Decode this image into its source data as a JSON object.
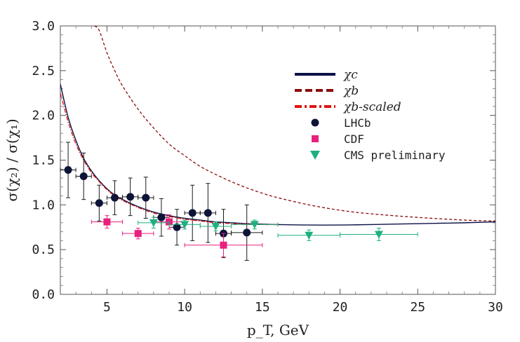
{
  "chart_data": {
    "type": "line",
    "title": "",
    "xlabel": "p_T, GeV",
    "ylabel": "σ(χ₂) / σ(χ₁)",
    "xlim": [
      2,
      30
    ],
    "ylim": [
      0.0,
      3.0
    ],
    "xticks": [
      5,
      10,
      15,
      20,
      25,
      30
    ],
    "xtick_labels": [
      "5",
      "10",
      "15",
      "20",
      "25",
      "30"
    ],
    "yticks": [
      0.0,
      0.5,
      1.0,
      1.5,
      2.0,
      2.5,
      3.0
    ],
    "ytick_labels": [
      "0.0",
      "0.5",
      "1.0",
      "1.5",
      "2.0",
      "2.5",
      "3.0"
    ],
    "legend_position": "top-right",
    "series": [
      {
        "name": "χc",
        "kind": "line",
        "style": "solid",
        "color": "#0d1147",
        "x": [
          2.0,
          2.5,
          3.0,
          3.5,
          4.0,
          4.5,
          5.0,
          5.5,
          6.0,
          7.0,
          8.0,
          9.0,
          10.0,
          11.0,
          12.0,
          13.0,
          14.0,
          15.0,
          16.0,
          18.0,
          20.0,
          22.0,
          25.0,
          28.0,
          30.0
        ],
        "y": [
          2.35,
          1.98,
          1.72,
          1.52,
          1.38,
          1.27,
          1.18,
          1.11,
          1.06,
          0.98,
          0.92,
          0.88,
          0.85,
          0.83,
          0.81,
          0.8,
          0.79,
          0.785,
          0.78,
          0.775,
          0.775,
          0.78,
          0.79,
          0.8,
          0.81
        ]
      },
      {
        "name": "χb",
        "kind": "line",
        "style": "dashed",
        "color": "#8b0a0a",
        "x": [
          4.2,
          4.5,
          5.0,
          5.5,
          6.0,
          7.0,
          8.0,
          9.0,
          10.0,
          11.0,
          12.0,
          13.0,
          14.0,
          15.0,
          16.0,
          18.0,
          20.0,
          22.0,
          25.0,
          28.0,
          30.0
        ],
        "y": [
          3.0,
          2.95,
          2.7,
          2.5,
          2.33,
          2.07,
          1.86,
          1.68,
          1.55,
          1.43,
          1.34,
          1.26,
          1.19,
          1.13,
          1.08,
          1.0,
          0.94,
          0.9,
          0.86,
          0.83,
          0.82
        ]
      },
      {
        "name": "χb-scaled",
        "kind": "line",
        "style": "dash-dot",
        "color": "#e0140f",
        "x": [
          2.0,
          2.5,
          3.0,
          3.5,
          4.0,
          4.5,
          5.0,
          5.5,
          6.0,
          7.0,
          8.0,
          9.0,
          10.0,
          11.0,
          12.0,
          13.0,
          14.0,
          15.0,
          16.0
        ],
        "y": [
          2.25,
          1.93,
          1.68,
          1.5,
          1.36,
          1.26,
          1.17,
          1.1,
          1.05,
          0.97,
          0.91,
          0.87,
          0.84,
          0.82,
          0.8,
          0.79,
          0.785,
          0.78,
          0.78
        ]
      },
      {
        "name": "LHCb",
        "kind": "points",
        "marker": "circle",
        "color": "#0d1438",
        "points": [
          {
            "x": 2.5,
            "y": 1.39,
            "xerr": 0.5,
            "yerr": 0.31
          },
          {
            "x": 3.5,
            "y": 1.32,
            "xerr": 0.5,
            "yerr": 0.26
          },
          {
            "x": 4.5,
            "y": 1.02,
            "xerr": 0.5,
            "yerr": 0.2
          },
          {
            "x": 5.5,
            "y": 1.08,
            "xerr": 0.5,
            "yerr": 0.19
          },
          {
            "x": 6.5,
            "y": 1.09,
            "xerr": 0.5,
            "yerr": 0.21
          },
          {
            "x": 7.5,
            "y": 1.08,
            "xerr": 0.5,
            "yerr": 0.23
          },
          {
            "x": 8.5,
            "y": 0.86,
            "xerr": 0.5,
            "yerr": 0.21
          },
          {
            "x": 9.5,
            "y": 0.75,
            "xerr": 0.5,
            "yerr": 0.2
          },
          {
            "x": 10.5,
            "y": 0.91,
            "xerr": 0.5,
            "yerr": 0.31
          },
          {
            "x": 11.5,
            "y": 0.91,
            "xerr": 0.5,
            "yerr": 0.33
          },
          {
            "x": 12.5,
            "y": 0.68,
            "xerr": 0.5,
            "yerr": 0.27
          },
          {
            "x": 14.0,
            "y": 0.69,
            "xerr": 1.0,
            "yerr": 0.31
          }
        ]
      },
      {
        "name": "CDF",
        "kind": "points",
        "marker": "square",
        "color": "#e8207e",
        "points": [
          {
            "x": 5.0,
            "y": 0.81,
            "xerr": 1.0,
            "yerr": 0.07
          },
          {
            "x": 7.0,
            "y": 0.68,
            "xerr": 1.0,
            "yerr": 0.06
          },
          {
            "x": 9.0,
            "y": 0.81,
            "xerr": 1.0,
            "yerr": 0.08
          },
          {
            "x": 12.5,
            "y": 0.55,
            "xerr": 2.5,
            "yerr": 0.13
          }
        ]
      },
      {
        "name": "CMS preliminary",
        "kind": "points",
        "marker": "triangle-down",
        "color": "#1fb07f",
        "points": [
          {
            "x": 8.0,
            "y": 0.8,
            "xerr": 1.0,
            "yerr": 0.06
          },
          {
            "x": 10.0,
            "y": 0.78,
            "xerr": 1.0,
            "yerr": 0.05
          },
          {
            "x": 12.0,
            "y": 0.76,
            "xerr": 1.0,
            "yerr": 0.05
          },
          {
            "x": 14.5,
            "y": 0.78,
            "xerr": 1.5,
            "yerr": 0.05
          },
          {
            "x": 18.0,
            "y": 0.66,
            "xerr": 2.0,
            "yerr": 0.06
          },
          {
            "x": 22.5,
            "y": 0.67,
            "xerr": 2.5,
            "yerr": 0.07
          }
        ]
      }
    ]
  }
}
